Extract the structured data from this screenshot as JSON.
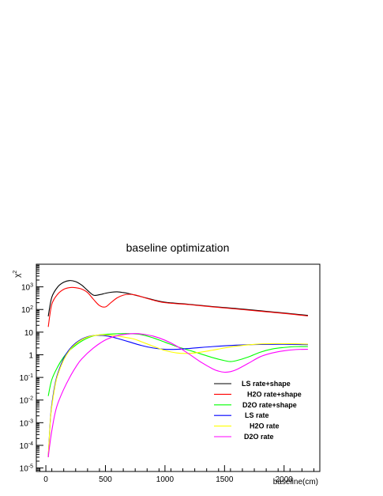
{
  "chart_data": {
    "type": "line",
    "title": "baseline optimization",
    "xlabel": "baseline(cm)",
    "ylabel_base": "χ",
    "ylabel_exp": "2",
    "xlim": [
      -80,
      2300
    ],
    "ylim": [
      7e-06,
      10000
    ],
    "y_scale": "log",
    "grid": false,
    "legend_position": "bottom-right",
    "x_ticks": [
      {
        "value": 0,
        "label": "0"
      },
      {
        "value": 500,
        "label": "500"
      },
      {
        "value": 1000,
        "label": "1000"
      },
      {
        "value": 1500,
        "label": "1500"
      },
      {
        "value": 2000,
        "label": "2000"
      }
    ],
    "y_ticks": [
      {
        "value": 1e-05,
        "base": "10",
        "exp": "-5"
      },
      {
        "value": 0.0001,
        "base": "10",
        "exp": "-4"
      },
      {
        "value": 0.001,
        "base": "10",
        "exp": "-3"
      },
      {
        "value": 0.01,
        "base": "10",
        "exp": "-2"
      },
      {
        "value": 0.1,
        "base": "10",
        "exp": "-1"
      },
      {
        "value": 1,
        "base": "1",
        "exp": ""
      },
      {
        "value": 10,
        "base": "10",
        "exp": ""
      },
      {
        "value": 100,
        "base": "10",
        "exp": "2"
      },
      {
        "value": 1000,
        "base": "10",
        "exp": "3"
      }
    ],
    "series": [
      {
        "name": "LS rate+shape",
        "color": "#000000",
        "x": [
          20,
          50,
          100,
          150,
          200,
          250,
          300,
          350,
          400,
          450,
          500,
          550,
          600,
          650,
          700,
          800,
          900,
          1000,
          1200,
          1400,
          1600,
          1800,
          2000,
          2200
        ],
        "y": [
          50,
          350,
          1000,
          1600,
          1900,
          1700,
          1200,
          700,
          430,
          450,
          520,
          580,
          600,
          560,
          500,
          370,
          270,
          210,
          170,
          135,
          110,
          88,
          70,
          55
        ]
      },
      {
        "name": "H2O rate+shape",
        "color": "#ff0000",
        "x": [
          20,
          50,
          100,
          150,
          200,
          250,
          300,
          350,
          400,
          450,
          500,
          550,
          600,
          650,
          700,
          750,
          800,
          900,
          1000,
          1200,
          1400,
          1600,
          1800,
          2000,
          2200
        ],
        "y": [
          17,
          170,
          480,
          780,
          930,
          920,
          800,
          560,
          280,
          150,
          130,
          210,
          330,
          430,
          470,
          440,
          370,
          260,
          200,
          165,
          130,
          105,
          84,
          67,
          52
        ]
      },
      {
        "name": "D2O rate+shape",
        "color": "#00ff00",
        "x": [
          20,
          50,
          100,
          150,
          200,
          300,
          400,
          500,
          600,
          700,
          800,
          900,
          1000,
          1100,
          1200,
          1300,
          1400,
          1500,
          1550,
          1600,
          1700,
          1800,
          1900,
          2000,
          2100,
          2200
        ],
        "y": [
          0.015,
          0.08,
          0.3,
          0.8,
          1.6,
          4.0,
          6.8,
          8.0,
          8.5,
          8.6,
          7.8,
          5.6,
          3.6,
          2.3,
          1.6,
          1.1,
          0.75,
          0.55,
          0.5,
          0.55,
          0.8,
          1.3,
          1.8,
          2.1,
          2.3,
          2.3
        ]
      },
      {
        "name": "LS rate",
        "color": "#0000ff",
        "x": [
          20,
          40,
          60,
          80,
          100,
          150,
          200,
          250,
          300,
          350,
          400,
          450,
          500,
          550,
          600,
          700,
          800,
          900,
          1000,
          1100,
          1200,
          1400,
          1600,
          1800,
          2000,
          2200
        ],
        "y": [
          3e-05,
          0.002,
          0.015,
          0.06,
          0.15,
          0.7,
          1.8,
          3.3,
          4.9,
          6.3,
          7.1,
          7.2,
          6.9,
          6.2,
          5.3,
          3.7,
          2.6,
          2.0,
          1.75,
          1.75,
          1.9,
          2.3,
          2.65,
          2.85,
          2.9,
          2.8
        ]
      },
      {
        "name": "H2O rate",
        "color": "#ffff00",
        "x": [
          20,
          40,
          60,
          80,
          100,
          150,
          200,
          250,
          300,
          350,
          400,
          450,
          500,
          550,
          600,
          700,
          750,
          800,
          900,
          1000,
          1100,
          1200,
          1300,
          1400,
          1500,
          1600,
          1700,
          1800,
          1900,
          2000,
          2100,
          2200
        ],
        "y": [
          3e-05,
          0.0018,
          0.012,
          0.05,
          0.13,
          0.6,
          1.6,
          3.0,
          4.6,
          6.0,
          7.0,
          7.5,
          7.5,
          7.2,
          6.8,
          5.5,
          4.8,
          3.8,
          2.4,
          1.55,
          1.2,
          1.15,
          1.3,
          1.6,
          2.0,
          2.4,
          2.75,
          3.0,
          3.1,
          3.1,
          3.05,
          2.95
        ]
      },
      {
        "name": "D2O rate",
        "color": "#ff00ff",
        "x": [
          20,
          40,
          60,
          80,
          100,
          150,
          200,
          250,
          300,
          400,
          500,
          600,
          700,
          750,
          800,
          900,
          1000,
          1100,
          1200,
          1300,
          1400,
          1450,
          1500,
          1550,
          1600,
          1700,
          1800,
          1900,
          2000,
          2100,
          2200
        ],
        "y": [
          3e-05,
          0.0002,
          0.0009,
          0.003,
          0.007,
          0.03,
          0.1,
          0.28,
          0.65,
          2.0,
          4.5,
          7.0,
          8.4,
          8.6,
          8.3,
          6.7,
          4.4,
          2.4,
          1.1,
          0.48,
          0.24,
          0.19,
          0.17,
          0.18,
          0.22,
          0.42,
          0.82,
          1.2,
          1.5,
          1.7,
          1.75
        ]
      }
    ]
  }
}
